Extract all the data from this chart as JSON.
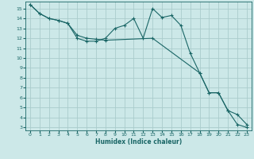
{
  "xlabel": "Humidex (Indice chaleur)",
  "bg_color": "#cce8e8",
  "grid_color": "#aacccc",
  "line_color": "#1a6666",
  "xlim": [
    -0.5,
    23.5
  ],
  "ylim": [
    2.7,
    15.7
  ],
  "xticks": [
    0,
    1,
    2,
    3,
    4,
    5,
    6,
    7,
    8,
    9,
    10,
    11,
    12,
    13,
    14,
    15,
    16,
    17,
    18,
    19,
    20,
    21,
    22,
    23
  ],
  "yticks": [
    3,
    4,
    5,
    6,
    7,
    8,
    9,
    10,
    11,
    12,
    13,
    14,
    15
  ],
  "line1_x": [
    0,
    1,
    2,
    3,
    4,
    5,
    6,
    7,
    8,
    9,
    10,
    11,
    12,
    13,
    14,
    15,
    16,
    17,
    18,
    19,
    20,
    21,
    22,
    23
  ],
  "line1_y": [
    15.4,
    14.5,
    14.0,
    13.8,
    13.5,
    12.0,
    11.7,
    11.7,
    12.0,
    13.0,
    13.3,
    14.0,
    12.0,
    15.0,
    14.1,
    14.3,
    13.3,
    10.5,
    8.5,
    6.5,
    6.5,
    4.7,
    3.3,
    3.0
  ],
  "line2_x": [
    0,
    1,
    2,
    3,
    4,
    5,
    6,
    7,
    8,
    13,
    18,
    19,
    20,
    21,
    22,
    23
  ],
  "line2_y": [
    15.4,
    14.5,
    14.0,
    13.8,
    13.5,
    12.3,
    12.0,
    11.9,
    11.8,
    12.0,
    8.5,
    6.5,
    6.5,
    4.7,
    4.3,
    3.3
  ]
}
